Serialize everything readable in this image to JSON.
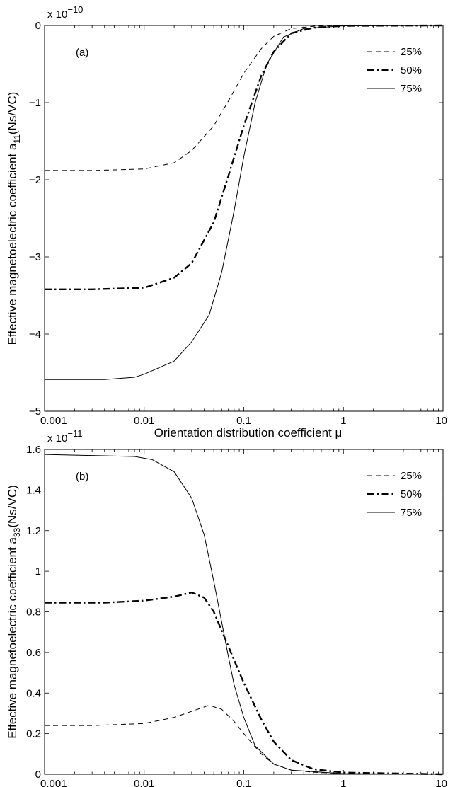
{
  "chart_data": [
    {
      "type": "line",
      "panel_label": "(a)",
      "x_scale": "log",
      "xlim": [
        0.001,
        10
      ],
      "ylim": [
        -5,
        0
      ],
      "xlabel": "Orientation distribution coefficient μ",
      "ylabel_main": "Effective magnetoelectric coefficient a",
      "ylabel_sub": "11",
      "ylabel_unit": "(Ns/VC)",
      "y_multiplier_base": "x 10",
      "y_multiplier_exp": "−10",
      "x_ticks": [
        0.001,
        0.01,
        0.1,
        1,
        10
      ],
      "x_tick_labels": [
        "0.001",
        "0.01",
        "0.1",
        "1",
        "10"
      ],
      "y_ticks": [
        0,
        -1,
        -2,
        -3,
        -4,
        -5
      ],
      "y_tick_labels": [
        "0",
        "−1",
        "−2",
        "−3",
        "−4",
        "−5"
      ],
      "grid": false,
      "legend_position": "top-right",
      "series": [
        {
          "name": "25%",
          "style": "dashed",
          "points": [
            [
              0.001,
              -1.88
            ],
            [
              0.003,
              -1.88
            ],
            [
              0.01,
              -1.86
            ],
            [
              0.02,
              -1.78
            ],
            [
              0.03,
              -1.62
            ],
            [
              0.05,
              -1.3
            ],
            [
              0.07,
              -0.98
            ],
            [
              0.1,
              -0.62
            ],
            [
              0.15,
              -0.3
            ],
            [
              0.2,
              -0.14
            ],
            [
              0.3,
              -0.04
            ],
            [
              0.5,
              -0.01
            ],
            [
              1,
              0
            ],
            [
              10,
              0
            ]
          ]
        },
        {
          "name": "50%",
          "style": "dashdot",
          "points": [
            [
              0.001,
              -3.42
            ],
            [
              0.003,
              -3.42
            ],
            [
              0.01,
              -3.4
            ],
            [
              0.02,
              -3.27
            ],
            [
              0.03,
              -3.08
            ],
            [
              0.05,
              -2.55
            ],
            [
              0.07,
              -1.95
            ],
            [
              0.1,
              -1.3
            ],
            [
              0.15,
              -0.65
            ],
            [
              0.2,
              -0.34
            ],
            [
              0.3,
              -0.1
            ],
            [
              0.5,
              -0.03
            ],
            [
              1,
              -0.005
            ],
            [
              10,
              0
            ]
          ]
        },
        {
          "name": "75%",
          "style": "solid",
          "points": [
            [
              0.001,
              -4.59
            ],
            [
              0.004,
              -4.59
            ],
            [
              0.008,
              -4.56
            ],
            [
              0.01,
              -4.52
            ],
            [
              0.02,
              -4.35
            ],
            [
              0.03,
              -4.1
            ],
            [
              0.045,
              -3.75
            ],
            [
              0.06,
              -3.2
            ],
            [
              0.08,
              -2.4
            ],
            [
              0.1,
              -1.7
            ],
            [
              0.13,
              -1.0
            ],
            [
              0.17,
              -0.5
            ],
            [
              0.25,
              -0.15
            ],
            [
              0.4,
              -0.04
            ],
            [
              1,
              -0.005
            ],
            [
              10,
              0
            ]
          ]
        }
      ]
    },
    {
      "type": "line",
      "panel_label": "(b)",
      "x_scale": "log",
      "xlim": [
        0.001,
        10
      ],
      "ylim": [
        0,
        1.6
      ],
      "xlabel": "Orientation distribution coefficient μ",
      "ylabel_main": "Effective magnetoelectric coefficient a",
      "ylabel_sub": "33",
      "ylabel_unit": "(Ns/VC)",
      "y_multiplier_base": "x 10",
      "y_multiplier_exp": "−11",
      "x_ticks": [
        0.001,
        0.01,
        0.1,
        1,
        10
      ],
      "x_tick_labels": [
        "0.001",
        "0.01",
        "0.1",
        "1",
        "10"
      ],
      "y_ticks": [
        0,
        0.2,
        0.4,
        0.6,
        0.8,
        1,
        1.2,
        1.4,
        1.6
      ],
      "y_tick_labels": [
        "0",
        "0.2",
        "0.4",
        "0.6",
        "0.8",
        "1",
        "1.2",
        "1.4",
        "1.6"
      ],
      "grid": false,
      "legend_position": "top-right",
      "series": [
        {
          "name": "25%",
          "style": "dashed",
          "points": [
            [
              0.001,
              0.24
            ],
            [
              0.003,
              0.24
            ],
            [
              0.01,
              0.25
            ],
            [
              0.02,
              0.28
            ],
            [
              0.03,
              0.31
            ],
            [
              0.045,
              0.34
            ],
            [
              0.06,
              0.32
            ],
            [
              0.08,
              0.26
            ],
            [
              0.1,
              0.2
            ],
            [
              0.15,
              0.1
            ],
            [
              0.2,
              0.05
            ],
            [
              0.3,
              0.02
            ],
            [
              0.5,
              0.01
            ],
            [
              1,
              0.003
            ],
            [
              10,
              0
            ]
          ]
        },
        {
          "name": "50%",
          "style": "dashdot",
          "points": [
            [
              0.001,
              0.845
            ],
            [
              0.004,
              0.845
            ],
            [
              0.01,
              0.855
            ],
            [
              0.02,
              0.875
            ],
            [
              0.03,
              0.895
            ],
            [
              0.04,
              0.87
            ],
            [
              0.05,
              0.8
            ],
            [
              0.07,
              0.63
            ],
            [
              0.1,
              0.45
            ],
            [
              0.15,
              0.27
            ],
            [
              0.2,
              0.16
            ],
            [
              0.3,
              0.07
            ],
            [
              0.5,
              0.025
            ],
            [
              1,
              0.008
            ],
            [
              10,
              0
            ]
          ]
        },
        {
          "name": "75%",
          "style": "solid",
          "points": [
            [
              0.001,
              1.575
            ],
            [
              0.003,
              1.57
            ],
            [
              0.008,
              1.565
            ],
            [
              0.012,
              1.55
            ],
            [
              0.02,
              1.49
            ],
            [
              0.03,
              1.36
            ],
            [
              0.04,
              1.18
            ],
            [
              0.05,
              0.95
            ],
            [
              0.06,
              0.75
            ],
            [
              0.07,
              0.58
            ],
            [
              0.08,
              0.44
            ],
            [
              0.1,
              0.28
            ],
            [
              0.13,
              0.14
            ],
            [
              0.2,
              0.05
            ],
            [
              0.3,
              0.02
            ],
            [
              1,
              0.003
            ],
            [
              10,
              0
            ]
          ]
        }
      ]
    }
  ]
}
